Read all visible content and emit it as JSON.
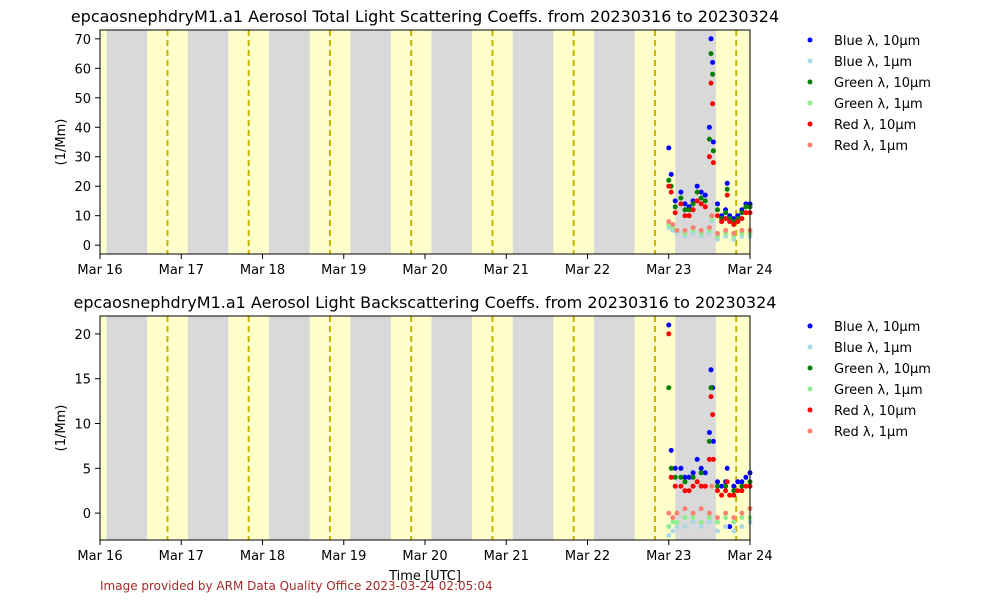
{
  "footer": "Image provided by ARM Data Quality Office 2023-03-24 02:05:04",
  "x_tick_labels": [
    "Mar 16",
    "Mar 17",
    "Mar 18",
    "Mar 19",
    "Mar 20",
    "Mar 21",
    "Mar 22",
    "Mar 23",
    "Mar 24"
  ],
  "colors": {
    "night_band": "#d9d9d9",
    "day_band": "#ffffcc",
    "noon_line": "#c8b400",
    "blue_10um": "#0000ff",
    "blue_1um": "#add8e6",
    "green_10um": "#008000",
    "green_1um": "#90ee90",
    "red_10um": "#ff0000",
    "red_1um": "#fa8072"
  },
  "chart_data": [
    {
      "type": "scatter",
      "title": "epcaosnephdryM1.a1 Aerosol Total Light Scattering Coeffs. from 20230316 to 20230324",
      "xlabel": "",
      "ylabel": "(1/Mm)",
      "x_range": [
        "2023-03-16",
        "2023-03-24"
      ],
      "ylim": [
        -3,
        73
      ],
      "yticks": [
        0,
        10,
        20,
        30,
        40,
        50,
        60,
        70
      ],
      "legend_position": "right",
      "grid": false,
      "series": [
        {
          "name": "Blue λ, 10μm",
          "color": "#0000ff",
          "x": [
            23.0,
            23.03,
            23.08,
            23.15,
            23.2,
            23.25,
            23.3,
            23.35,
            23.4,
            23.45,
            23.5,
            23.52,
            23.54,
            23.55,
            23.6,
            23.65,
            23.7,
            23.72,
            23.75,
            23.8,
            23.85,
            23.9,
            23.95,
            24.0
          ],
          "y": [
            33,
            24,
            15,
            18,
            14,
            13,
            15,
            20,
            18,
            17,
            40,
            70,
            62,
            35,
            14,
            10,
            12,
            21,
            10,
            9,
            10,
            12,
            14,
            14
          ]
        },
        {
          "name": "Blue λ, 1μm",
          "color": "#add8e6",
          "x": [
            23.0,
            23.05,
            23.1,
            23.2,
            23.3,
            23.4,
            23.5,
            23.53,
            23.6,
            23.7,
            23.8,
            23.9,
            24.0
          ],
          "y": [
            6,
            5,
            4,
            3,
            4,
            3,
            4,
            8,
            2,
            3,
            2,
            3,
            3
          ]
        },
        {
          "name": "Green λ, 10μm",
          "color": "#008000",
          "x": [
            23.0,
            23.03,
            23.08,
            23.15,
            23.2,
            23.25,
            23.3,
            23.35,
            23.4,
            23.45,
            23.5,
            23.52,
            23.54,
            23.55,
            23.6,
            23.65,
            23.7,
            23.72,
            23.75,
            23.8,
            23.85,
            23.9,
            23.95,
            24.0
          ],
          "y": [
            22,
            20,
            13,
            16,
            12,
            12,
            14,
            18,
            16,
            15,
            36,
            65,
            58,
            32,
            12,
            9,
            11,
            19,
            9,
            8,
            9,
            11,
            13,
            13
          ]
        },
        {
          "name": "Green λ, 1μm",
          "color": "#90ee90",
          "x": [
            23.0,
            23.05,
            23.1,
            23.2,
            23.3,
            23.4,
            23.5,
            23.53,
            23.6,
            23.7,
            23.8,
            23.9,
            24.0
          ],
          "y": [
            7,
            6,
            5,
            4,
            5,
            4,
            5,
            9,
            3,
            4,
            3,
            4,
            4
          ]
        },
        {
          "name": "Red λ, 10μm",
          "color": "#ff0000",
          "x": [
            23.0,
            23.03,
            23.08,
            23.15,
            23.2,
            23.25,
            23.3,
            23.35,
            23.4,
            23.45,
            23.5,
            23.52,
            23.54,
            23.55,
            23.6,
            23.65,
            23.7,
            23.72,
            23.75,
            23.8,
            23.85,
            23.9,
            23.95,
            24.0
          ],
          "y": [
            20,
            18,
            11,
            14,
            10,
            10,
            12,
            15,
            14,
            13,
            30,
            55,
            48,
            28,
            10,
            8,
            9,
            17,
            8,
            7,
            8,
            9,
            11,
            11
          ]
        },
        {
          "name": "Red λ, 1μm",
          "color": "#fa8072",
          "x": [
            23.0,
            23.05,
            23.1,
            23.2,
            23.3,
            23.4,
            23.5,
            23.53,
            23.6,
            23.7,
            23.8,
            23.9,
            24.0
          ],
          "y": [
            8,
            7,
            5,
            5,
            6,
            5,
            6,
            10,
            4,
            5,
            4,
            5,
            5
          ]
        }
      ]
    },
    {
      "type": "scatter",
      "title": "epcaosnephdryM1.a1 Aerosol Light Backscattering Coeffs. from 20230316 to 20230324",
      "xlabel": "Time [UTC]",
      "ylabel": "(1/Mm)",
      "x_range": [
        "2023-03-16",
        "2023-03-24"
      ],
      "ylim": [
        -3,
        22
      ],
      "yticks": [
        0,
        5,
        10,
        15,
        20
      ],
      "legend_position": "right",
      "grid": false,
      "series": [
        {
          "name": "Blue λ, 10μm",
          "color": "#0000ff",
          "x": [
            23.0,
            23.03,
            23.08,
            23.15,
            23.2,
            23.25,
            23.3,
            23.35,
            23.4,
            23.45,
            23.5,
            23.52,
            23.54,
            23.55,
            23.6,
            23.65,
            23.7,
            23.72,
            23.75,
            23.8,
            23.85,
            23.9,
            23.95,
            24.0
          ],
          "y": [
            21,
            7,
            5,
            5,
            4,
            4,
            4.5,
            6,
            5,
            4.5,
            9,
            16,
            14,
            8,
            3.5,
            3,
            3.5,
            5,
            -1.5,
            3,
            3.5,
            3.5,
            4,
            4.5
          ]
        },
        {
          "name": "Blue λ, 1μm",
          "color": "#add8e6",
          "x": [
            23.0,
            23.05,
            23.1,
            23.2,
            23.3,
            23.4,
            23.5,
            23.6,
            23.7,
            23.8,
            23.9,
            24.0
          ],
          "y": [
            -2.5,
            -2,
            -1.5,
            -1.5,
            -1,
            -1.5,
            -1,
            -2,
            -1.5,
            -2,
            -1.5,
            -1
          ]
        },
        {
          "name": "Green λ, 10μm",
          "color": "#008000",
          "x": [
            23.0,
            23.03,
            23.08,
            23.15,
            23.2,
            23.3,
            23.4,
            23.5,
            23.52,
            23.6,
            23.7,
            23.8,
            23.9,
            24.0
          ],
          "y": [
            14,
            5,
            4,
            4,
            3.5,
            4,
            4.5,
            8,
            14,
            3,
            3,
            2.5,
            3,
            3.5
          ]
        },
        {
          "name": "Green λ, 1μm",
          "color": "#90ee90",
          "x": [
            23.0,
            23.05,
            23.1,
            23.2,
            23.3,
            23.4,
            23.5,
            23.6,
            23.7,
            23.8,
            23.9,
            24.0
          ],
          "y": [
            -1.5,
            -1,
            -1,
            -0.5,
            -0.5,
            -1,
            -0.5,
            -1,
            -0.5,
            -1,
            -0.5,
            -0.5
          ]
        },
        {
          "name": "Red λ, 10μm",
          "color": "#ff0000",
          "x": [
            23.0,
            23.03,
            23.08,
            23.15,
            23.2,
            23.25,
            23.3,
            23.35,
            23.4,
            23.45,
            23.5,
            23.52,
            23.54,
            23.55,
            23.6,
            23.65,
            23.7,
            23.72,
            23.75,
            23.8,
            23.85,
            23.9,
            23.95,
            24.0
          ],
          "y": [
            20,
            4,
            3,
            3,
            2.5,
            2.5,
            3,
            3.5,
            3,
            3,
            6,
            13,
            11,
            6,
            2.5,
            2,
            2.5,
            3.5,
            2,
            2,
            2.5,
            2.5,
            3,
            3
          ]
        },
        {
          "name": "Red λ, 1μm",
          "color": "#fa8072",
          "x": [
            23.0,
            23.05,
            23.1,
            23.2,
            23.3,
            23.4,
            23.5,
            23.53,
            23.6,
            23.7,
            23.8,
            23.9,
            24.0
          ],
          "y": [
            0,
            -0.5,
            0,
            0.5,
            0,
            0.5,
            0,
            3,
            -0.5,
            0,
            -0.5,
            0,
            0.5
          ]
        }
      ]
    }
  ]
}
